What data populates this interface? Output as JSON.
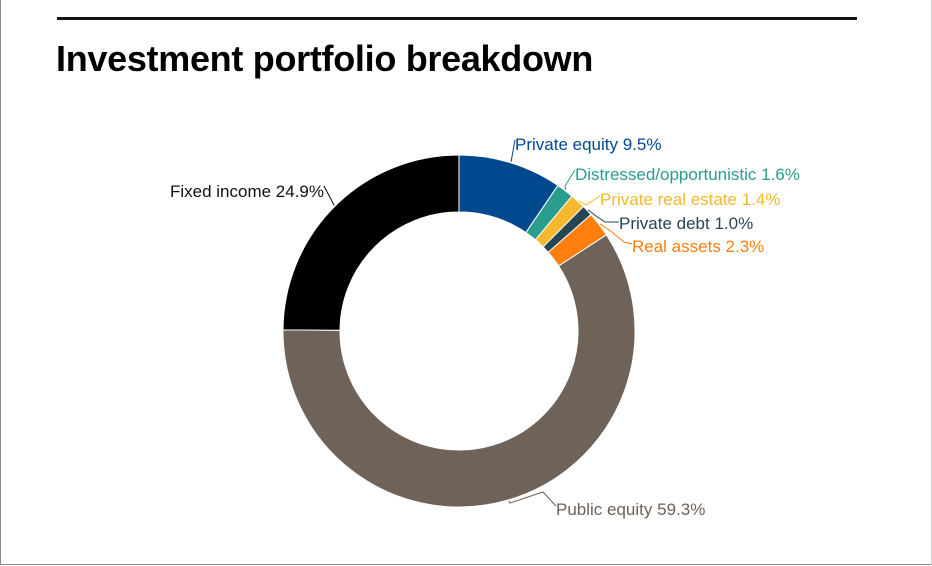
{
  "title": "Investment portfolio breakdown",
  "chart_data": {
    "type": "pie",
    "style": "donut",
    "title": "Investment portfolio breakdown",
    "slices": [
      {
        "name": "Private equity",
        "value": 9.5,
        "label": "Private equity  9.5%",
        "color": "#00498f"
      },
      {
        "name": "Distressed/opportunistic",
        "value": 1.6,
        "label": "Distressed/opportunistic 1.6%",
        "color": "#2a9d8f"
      },
      {
        "name": "Private real estate",
        "value": 1.4,
        "label": "Private real estate 1.4%",
        "color": "#f5b82e"
      },
      {
        "name": "Private debt",
        "value": 1.0,
        "label": "Private debt 1.0%",
        "color": "#264653"
      },
      {
        "name": "Real assets",
        "value": 2.3,
        "label": "Real assets 2.3%",
        "color": "#ff7f0e"
      },
      {
        "name": "Public equity",
        "value": 59.3,
        "label": "Public equity  59.3%",
        "color": "#6e6259"
      },
      {
        "name": "Fixed income",
        "value": 24.9,
        "label": "Fixed income 24.9%",
        "color": "#000000"
      }
    ]
  }
}
